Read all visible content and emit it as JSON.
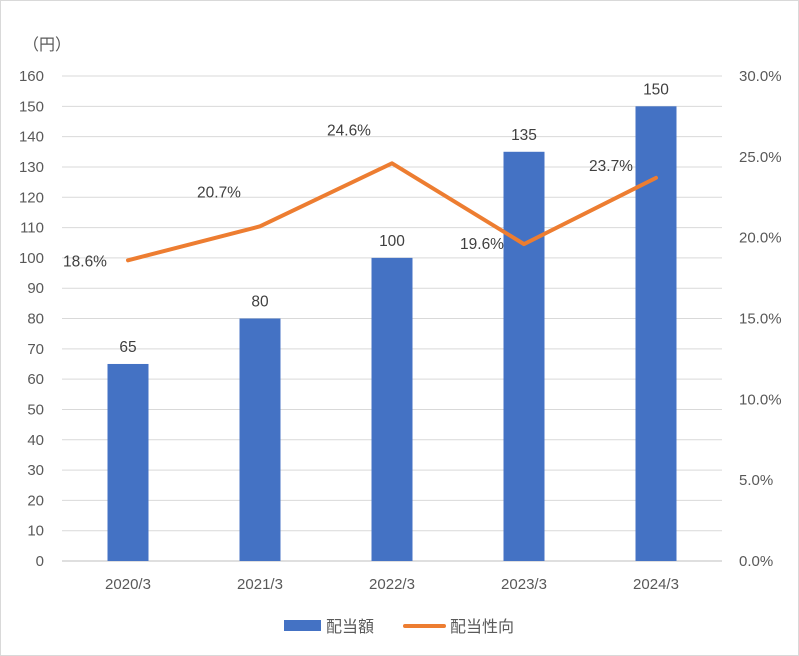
{
  "chart_data": {
    "type": "bar",
    "categories": [
      "2020/3",
      "2021/3",
      "2022/3",
      "2023/3",
      "2024/3"
    ],
    "ylabel": "（円）",
    "ylim": [
      0,
      160
    ],
    "yticks": [
      "0",
      "10",
      "20",
      "30",
      "40",
      "50",
      "60",
      "70",
      "80",
      "90",
      "100",
      "110",
      "120",
      "130",
      "140",
      "150",
      "160"
    ],
    "y2lim": [
      0,
      30
    ],
    "y2ticks": [
      "0.0%",
      "5.0%",
      "10.0%",
      "15.0%",
      "20.0%",
      "25.0%",
      "30.0%"
    ],
    "grid": true,
    "legend": "bottom",
    "series": [
      {
        "name": "配当額",
        "type": "bar",
        "axis": "left",
        "color": "#4472c4",
        "values": [
          65,
          80,
          100,
          135,
          150
        ],
        "labels": [
          "65",
          "80",
          "100",
          "135",
          "150"
        ]
      },
      {
        "name": "配当性向",
        "type": "line",
        "axis": "right",
        "color": "#ed7d31",
        "values": [
          18.6,
          20.7,
          24.6,
          19.6,
          23.7
        ],
        "labels": [
          "18.6%",
          "20.7%",
          "24.6%",
          "19.6%",
          "23.7%"
        ]
      }
    ]
  }
}
